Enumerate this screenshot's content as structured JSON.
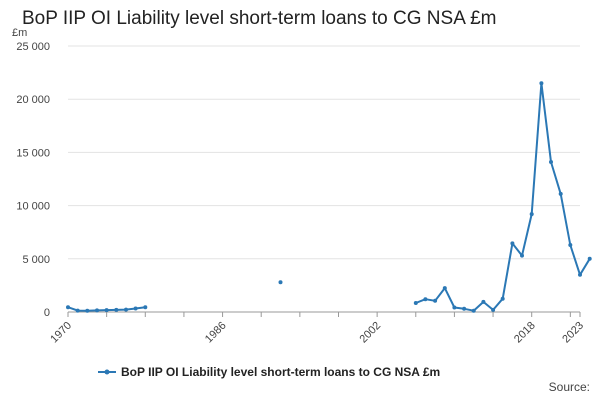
{
  "chart_data": {
    "type": "line",
    "title": "BoP IIP OI Liability level short-term loans to CG NSA £m",
    "ylabel": "£m",
    "xlabel": "",
    "xlim": [
      1970,
      2023
    ],
    "ylim": [
      0,
      25000
    ],
    "yticks": [
      0,
      5000,
      10000,
      15000,
      20000,
      25000
    ],
    "ytick_labels": [
      "0",
      "5 000",
      "10 000",
      "15 000",
      "20 000",
      "25 000"
    ],
    "xtick_labels": [
      "1970",
      "1986",
      "2002",
      "2018",
      "2023"
    ],
    "grid": true,
    "legend": "bottom",
    "color": "#2b78b5",
    "series": [
      {
        "name": "BoP IIP OI Liability level short-term loans to CG NSA £m",
        "segments": [
          [
            [
              1970,
              450
            ],
            [
              1971,
              130
            ],
            [
              1972,
              120
            ],
            [
              1973,
              150
            ],
            [
              1974,
              180
            ],
            [
              1975,
              200
            ],
            [
              1976,
              230
            ],
            [
              1977,
              330
            ],
            [
              1978,
              450
            ]
          ],
          [
            [
              1992,
              2800
            ]
          ],
          [
            [
              2006,
              850
            ],
            [
              2007,
              1200
            ],
            [
              2008,
              1050
            ],
            [
              2009,
              2250
            ],
            [
              2010,
              420
            ],
            [
              2011,
              300
            ],
            [
              2012,
              120
            ],
            [
              2013,
              950
            ],
            [
              2014,
              200
            ],
            [
              2015,
              1250
            ],
            [
              2016,
              6450
            ],
            [
              2017,
              5300
            ],
            [
              2018,
              9200
            ],
            [
              2019,
              21500
            ],
            [
              2020,
              14100
            ],
            [
              2021,
              11100
            ],
            [
              2022,
              6300
            ],
            [
              2023,
              3500
            ],
            [
              2024,
              5000
            ]
          ]
        ]
      }
    ]
  },
  "source_label": "Source:"
}
